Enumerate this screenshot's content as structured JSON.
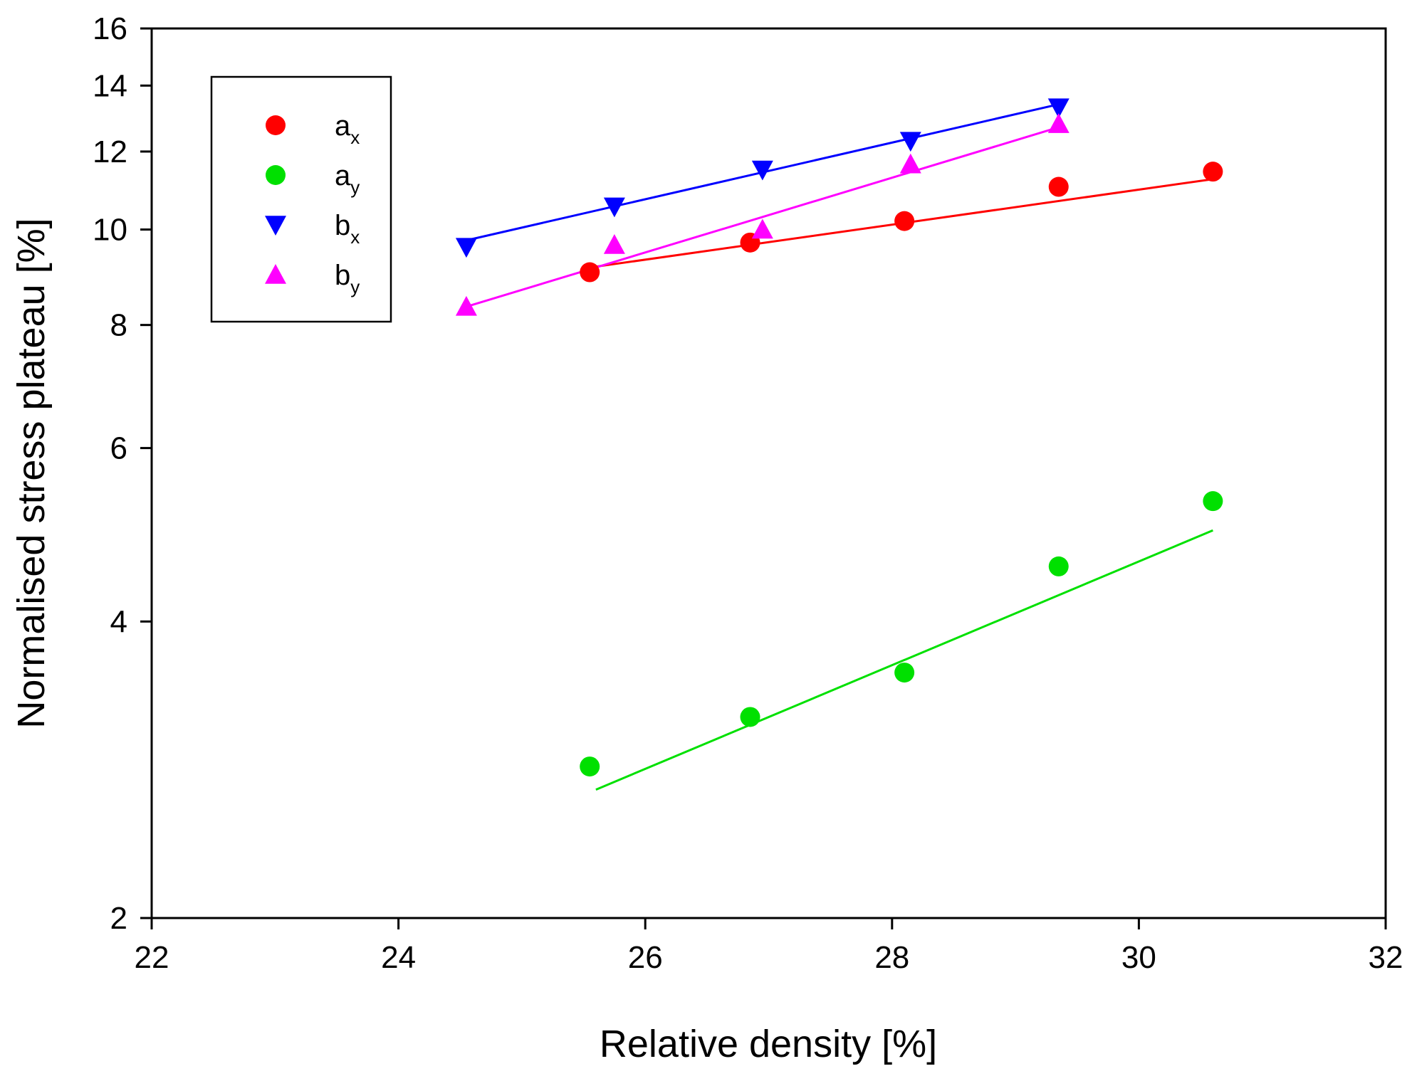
{
  "chart_data": {
    "type": "scatter",
    "title": "",
    "xlabel": "Relative density [%]",
    "ylabel": "Normalised stress plateau [%]",
    "xlim": [
      22,
      32
    ],
    "ylim": [
      2,
      16
    ],
    "yscale": "log",
    "xticks": [
      22,
      24,
      26,
      28,
      30,
      32
    ],
    "yticks": [
      2,
      4,
      6,
      8,
      10,
      12,
      14,
      16
    ],
    "grid": false,
    "legend_position": "top-left",
    "series": [
      {
        "name": "a",
        "subscript": "x",
        "color": "#ff0000",
        "marker": "circle",
        "x": [
          25.55,
          26.85,
          28.1,
          29.35,
          30.6
        ],
        "y": [
          9.05,
          9.7,
          10.2,
          11.05,
          11.45
        ],
        "fit": {
          "x": [
            25.55,
            30.6
          ],
          "y": [
            9.15,
            11.25
          ]
        }
      },
      {
        "name": "a",
        "subscript": "y",
        "color": "#00e000",
        "marker": "circle",
        "x": [
          25.55,
          26.85,
          28.1,
          29.35,
          30.6
        ],
        "y": [
          2.85,
          3.2,
          3.55,
          4.55,
          5.3
        ],
        "fit": {
          "x": [
            25.6,
            30.6
          ],
          "y": [
            2.7,
            4.95
          ]
        }
      },
      {
        "name": "b",
        "subscript": "x",
        "color": "#0000ff",
        "marker": "triangle-down",
        "x": [
          24.55,
          25.75,
          26.95,
          28.15,
          29.35
        ],
        "y": [
          9.6,
          10.55,
          11.5,
          12.3,
          13.3
        ],
        "fit": {
          "x": [
            24.55,
            29.35
          ],
          "y": [
            9.75,
            13.4
          ]
        }
      },
      {
        "name": "b",
        "subscript": "y",
        "color": "#ff00ff",
        "marker": "triangle-up",
        "x": [
          24.55,
          25.75,
          26.95,
          28.15,
          29.35
        ],
        "y": [
          8.35,
          9.65,
          10.0,
          11.65,
          12.8
        ],
        "fit": {
          "x": [
            24.55,
            29.35
          ],
          "y": [
            8.35,
            12.7
          ]
        }
      }
    ]
  }
}
